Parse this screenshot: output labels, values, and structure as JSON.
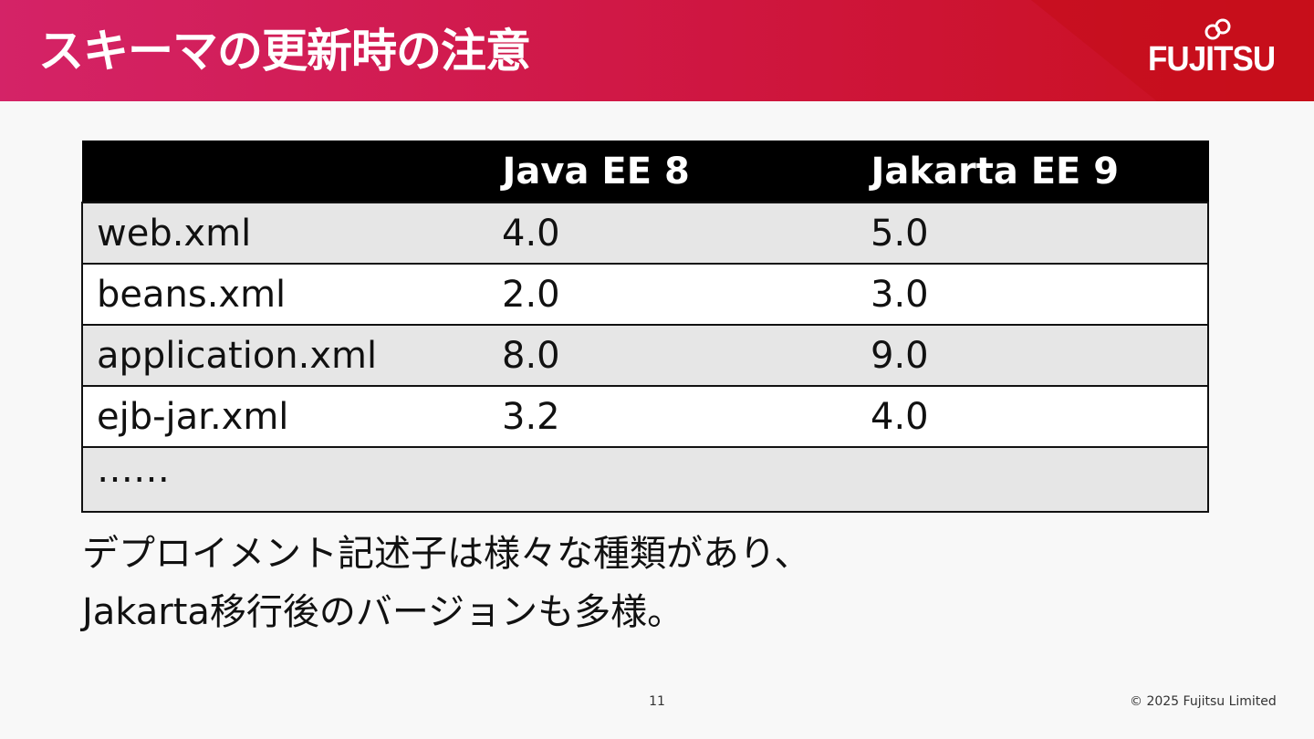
{
  "header": {
    "title": "スキーマの更新時の注意",
    "logo_text": "FUJITSU",
    "colors": {
      "gradient_start": "#d42367",
      "gradient_end": "#c9101c"
    }
  },
  "table": {
    "columns": [
      "",
      "Java EE 8",
      "Jakarta EE 9"
    ],
    "rows": [
      {
        "file": "web.xml",
        "java_ee_8": "4.0",
        "jakarta_ee_9": "5.0"
      },
      {
        "file": "beans.xml",
        "java_ee_8": "2.0",
        "jakarta_ee_9": "3.0"
      },
      {
        "file": "application.xml",
        "java_ee_8": "8.0",
        "jakarta_ee_9": "9.0"
      },
      {
        "file": "ejb-jar.xml",
        "java_ee_8": "3.2",
        "jakarta_ee_9": "4.0"
      },
      {
        "file": "……",
        "java_ee_8": "",
        "jakarta_ee_9": ""
      }
    ]
  },
  "note": {
    "line1": "デプロイメント記述子は様々な種類があり、",
    "line2": "Jakarta移行後のバージョンも多様。"
  },
  "footer": {
    "page_number": "11",
    "copyright": "© 2025 Fujitsu Limited"
  }
}
